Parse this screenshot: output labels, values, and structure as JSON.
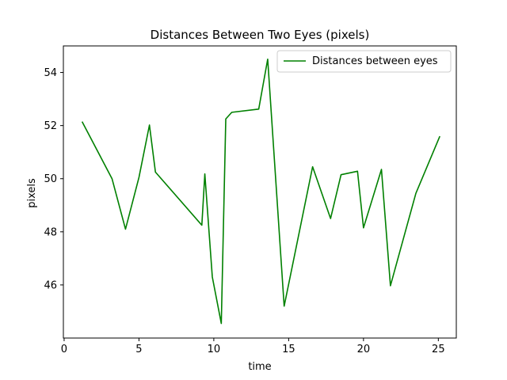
{
  "chart_data": {
    "type": "line",
    "title": "Distances Between Two Eyes (pixels)",
    "xlabel": "time",
    "ylabel": "pixels",
    "xlim": [
      -0.05,
      26.2
    ],
    "ylim": [
      44.0,
      55.0
    ],
    "xticks": [
      0,
      5,
      10,
      15,
      20,
      25
    ],
    "yticks": [
      46,
      48,
      50,
      52,
      54
    ],
    "grid": false,
    "legend_position": "top-right",
    "series": [
      {
        "name": "Distances between eyes",
        "color": "#008000",
        "x": [
          1.2,
          3.2,
          4.1,
          5.0,
          5.7,
          6.1,
          9.2,
          9.4,
          9.9,
          10.5,
          10.8,
          11.2,
          13.0,
          13.6,
          14.7,
          16.6,
          17.8,
          18.5,
          19.6,
          20.0,
          21.2,
          21.8,
          23.5,
          25.1
        ],
        "y": [
          52.15,
          50.0,
          48.1,
          50.05,
          52.02,
          50.25,
          48.25,
          50.18,
          46.3,
          44.55,
          52.25,
          52.5,
          52.62,
          54.5,
          45.2,
          50.45,
          48.5,
          50.15,
          50.28,
          48.15,
          50.35,
          45.97,
          49.45,
          51.6
        ]
      }
    ]
  }
}
